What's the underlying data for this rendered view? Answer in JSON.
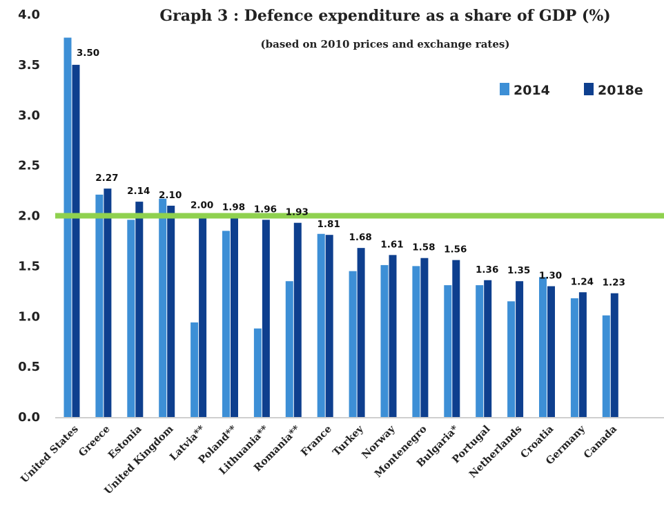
{
  "chart_data": {
    "type": "bar",
    "title": "Graph 3 : Defence expenditure as a share of GDP (%)",
    "subtitle": "(based on 2010 prices and exchange rates)",
    "xlabel": "",
    "ylabel": "",
    "ylim": [
      0,
      4
    ],
    "yticks": [
      "0.0",
      "0.5",
      "1.0",
      "1.5",
      "2.0",
      "2.5",
      "3.0",
      "3.5",
      "4.0"
    ],
    "grid": false,
    "legend_position": "top-right",
    "reference_line": {
      "value": 2.0,
      "color": "#8fd14f"
    },
    "categories": [
      "United States",
      "Greece",
      "Estonia",
      "United Kingdom",
      "Latvia**",
      "Poland**",
      "Lithuania**",
      "Romania**",
      "France",
      "Turkey",
      "Norway",
      "Montenegro",
      "Bulgaria*",
      "Portugal",
      "Netherlands",
      "Croatia",
      "Germany",
      "Canada"
    ],
    "series": [
      {
        "name": "2014",
        "color": "#3d8fd6",
        "values": [
          3.77,
          2.21,
          1.96,
          2.17,
          0.94,
          1.85,
          0.88,
          1.35,
          1.82,
          1.45,
          1.51,
          1.5,
          1.31,
          1.31,
          1.15,
          1.39,
          1.18,
          1.01
        ]
      },
      {
        "name": "2018e",
        "color": "#0e3f8e",
        "values": [
          3.5,
          2.27,
          2.14,
          2.1,
          2.0,
          1.98,
          1.96,
          1.93,
          1.81,
          1.68,
          1.61,
          1.58,
          1.56,
          1.36,
          1.35,
          1.3,
          1.24,
          1.23
        ],
        "labels": [
          "3.50",
          "2.27",
          "2.14",
          "2.10",
          "2.00",
          "1.98",
          "1.96",
          "1.93",
          "1.81",
          "1.68",
          "1.61",
          "1.58",
          "1.56",
          "1.36",
          "1.35",
          "1.30",
          "1.24",
          "1.23"
        ]
      }
    ]
  }
}
